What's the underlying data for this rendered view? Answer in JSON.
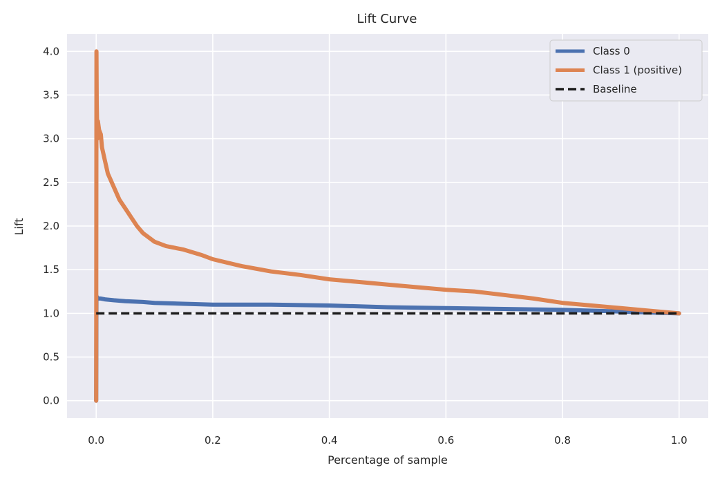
{
  "chart_data": {
    "type": "line",
    "title": "Lift Curve",
    "xlabel": "Percentage of sample",
    "ylabel": "Lift",
    "xlim": [
      -0.05,
      1.05
    ],
    "ylim": [
      -0.2,
      4.2
    ],
    "xticks": [
      0.0,
      0.2,
      0.4,
      0.6,
      0.8,
      1.0
    ],
    "xtick_labels": [
      "0.0",
      "0.2",
      "0.4",
      "0.6",
      "0.8",
      "1.0"
    ],
    "yticks": [
      0.0,
      0.5,
      1.0,
      1.5,
      2.0,
      2.5,
      3.0,
      3.5,
      4.0
    ],
    "ytick_labels": [
      "0.0",
      "0.5",
      "1.0",
      "1.5",
      "2.0",
      "2.5",
      "3.0",
      "3.5",
      "4.0"
    ],
    "grid": true,
    "legend_position": "top-right",
    "background": "#eaeaf2",
    "series": [
      {
        "name": "Class 0",
        "color": "#4c72b0",
        "style": "solid",
        "x": [
          0.0,
          0.0005,
          0.001,
          0.002,
          0.004,
          0.008,
          0.015,
          0.03,
          0.05,
          0.08,
          0.1,
          0.15,
          0.2,
          0.3,
          0.4,
          0.5,
          0.6,
          0.7,
          0.8,
          0.9,
          1.0
        ],
        "y": [
          0.0,
          1.2,
          1.19,
          1.18,
          1.17,
          1.17,
          1.16,
          1.15,
          1.14,
          1.13,
          1.12,
          1.11,
          1.1,
          1.1,
          1.09,
          1.07,
          1.06,
          1.05,
          1.04,
          1.02,
          1.0
        ]
      },
      {
        "name": "Class 1 (positive)",
        "color": "#dd8452",
        "style": "solid",
        "x": [
          0.0,
          0.0005,
          0.001,
          0.002,
          0.003,
          0.005,
          0.008,
          0.01,
          0.015,
          0.02,
          0.03,
          0.04,
          0.05,
          0.06,
          0.07,
          0.08,
          0.1,
          0.12,
          0.15,
          0.18,
          0.2,
          0.25,
          0.3,
          0.35,
          0.4,
          0.45,
          0.5,
          0.55,
          0.6,
          0.65,
          0.7,
          0.75,
          0.8,
          0.85,
          0.9,
          0.95,
          1.0
        ],
        "y": [
          0.0,
          4.0,
          3.4,
          3.0,
          3.2,
          3.1,
          3.05,
          2.9,
          2.75,
          2.6,
          2.45,
          2.3,
          2.2,
          2.1,
          2.0,
          1.92,
          1.82,
          1.77,
          1.73,
          1.67,
          1.62,
          1.54,
          1.48,
          1.44,
          1.39,
          1.36,
          1.33,
          1.3,
          1.27,
          1.25,
          1.21,
          1.17,
          1.12,
          1.09,
          1.06,
          1.03,
          1.0
        ]
      },
      {
        "name": "Baseline",
        "color": "#1a1a1a",
        "style": "dashed",
        "x": [
          0.0,
          1.0
        ],
        "y": [
          1.0,
          1.0
        ]
      }
    ]
  }
}
